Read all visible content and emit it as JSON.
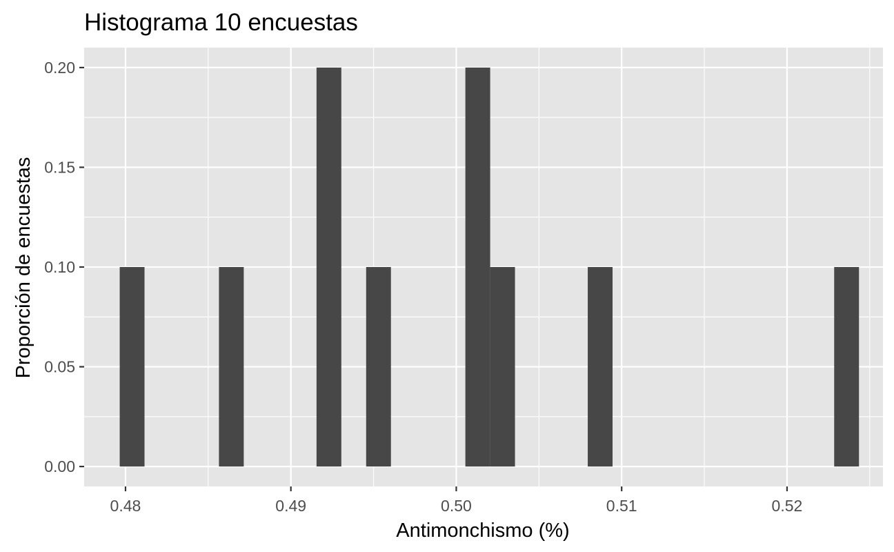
{
  "chart_data": {
    "type": "bar",
    "title": "Histograma 10 encuestas",
    "xlabel": "Antimonchismo (%)",
    "ylabel": "Proporción de encuestas",
    "xlim": [
      0.4775,
      0.5258
    ],
    "ylim": [
      -0.01,
      0.21
    ],
    "bin_width": 0.0015,
    "grid": true,
    "x_ticks": [
      0.48,
      0.49,
      0.5,
      0.51,
      0.52
    ],
    "x_tick_labels": [
      "0.48",
      "0.49",
      "0.50",
      "0.51",
      "0.52"
    ],
    "y_ticks": [
      0.0,
      0.05,
      0.1,
      0.15,
      0.2
    ],
    "y_tick_labels": [
      "0.00",
      "0.05",
      "0.10",
      "0.15",
      "0.20"
    ],
    "bins": [
      {
        "x": 0.4804,
        "value": 0.1
      },
      {
        "x": 0.4864,
        "value": 0.1
      },
      {
        "x": 0.4923,
        "value": 0.2
      },
      {
        "x": 0.4953,
        "value": 0.1
      },
      {
        "x": 0.5013,
        "value": 0.2
      },
      {
        "x": 0.5028,
        "value": 0.1
      },
      {
        "x": 0.5087,
        "value": 0.1
      },
      {
        "x": 0.5236,
        "value": 0.1
      }
    ],
    "colors": {
      "bar": "#474747",
      "panel": "#e5e5e5",
      "grid": "#ffffff"
    }
  }
}
